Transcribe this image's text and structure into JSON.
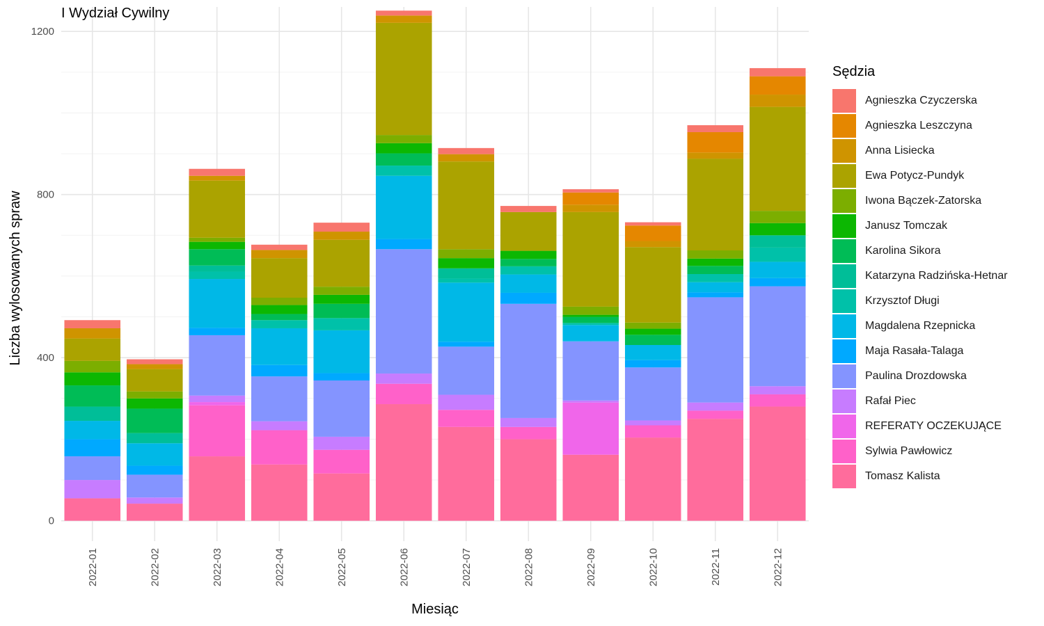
{
  "title": "I Wydział Cywilny",
  "chart_data": {
    "type": "bar",
    "stacked": true,
    "xlabel": "Miesiąc",
    "ylabel": "Liczba wylosowanych spraw",
    "ylim": [
      -50,
      1260
    ],
    "yticks": [
      0,
      400,
      800,
      1200
    ],
    "grid": true,
    "legend_title": "Sędzia",
    "legend_position": "right",
    "categories": [
      "2022-01",
      "2022-02",
      "2022-03",
      "2022-04",
      "2022-05",
      "2022-06",
      "2022-07",
      "2022-08",
      "2022-09",
      "2022-10",
      "2022-11",
      "2022-12"
    ],
    "series": [
      {
        "name": "Tomasz Kalista",
        "color": "#FF6C9C",
        "values": [
          55,
          42,
          158,
          138,
          116,
          286,
          230,
          200,
          162,
          204,
          250,
          280
        ]
      },
      {
        "name": "Sylwia Pawłowicz",
        "color": "#FF61C9",
        "values": [
          0,
          0,
          125,
          84,
          58,
          50,
          42,
          30,
          0,
          30,
          20,
          30
        ]
      },
      {
        "name": "REFERATY OCZEKUJĄCE",
        "color": "#F066EA",
        "values": [
          0,
          0,
          8,
          0,
          0,
          0,
          0,
          0,
          128,
          0,
          0,
          0
        ]
      },
      {
        "name": "Rafał Piec",
        "color": "#C77CFF",
        "values": [
          45,
          15,
          16,
          22,
          32,
          25,
          37,
          22,
          5,
          12,
          20,
          20
        ]
      },
      {
        "name": "Paulina Drozdowska",
        "color": "#8494FF",
        "values": [
          58,
          56,
          148,
          110,
          138,
          305,
          118,
          280,
          145,
          130,
          258,
          245
        ]
      },
      {
        "name": "Maja Rasała-Talaga",
        "color": "#00A9FF",
        "values": [
          42,
          22,
          18,
          28,
          18,
          25,
          12,
          27,
          0,
          18,
          12,
          20
        ]
      },
      {
        "name": "Magdalena Rzepnicka",
        "color": "#00B8E7",
        "values": [
          45,
          55,
          120,
          90,
          105,
          155,
          145,
          45,
          40,
          37,
          25,
          40
        ]
      },
      {
        "name": "Krzysztof Długi",
        "color": "#00C1A9",
        "values": [
          0,
          0,
          18,
          20,
          30,
          25,
          10,
          20,
          5,
          0,
          20,
          35
        ]
      },
      {
        "name": "Katarzyna Radzińska-Hetnar",
        "color": "#00BE98",
        "values": [
          35,
          25,
          15,
          0,
          0,
          0,
          25,
          0,
          0,
          0,
          0,
          30
        ]
      },
      {
        "name": "Karolina Sikora",
        "color": "#00BC56",
        "values": [
          52,
          60,
          40,
          15,
          35,
          30,
          0,
          18,
          15,
          25,
          20,
          0
        ]
      },
      {
        "name": "Janusz Tomczak",
        "color": "#0CB702",
        "values": [
          32,
          25,
          18,
          22,
          22,
          25,
          25,
          20,
          5,
          15,
          18,
          30
        ]
      },
      {
        "name": "Iwona Bączek-Zatorska",
        "color": "#7CAE00",
        "values": [
          28,
          17,
          10,
          18,
          20,
          20,
          22,
          0,
          20,
          15,
          20,
          30
        ]
      },
      {
        "name": "Ewa Potycz-Pundyk",
        "color": "#ABA300",
        "values": [
          55,
          55,
          140,
          97,
          115,
          275,
          215,
          95,
          232,
          185,
          225,
          255
        ]
      },
      {
        "name": "Anna Lisiecka",
        "color": "#CF9400",
        "values": [
          25,
          12,
          12,
          20,
          20,
          18,
          18,
          0,
          18,
          15,
          15,
          30
        ]
      },
      {
        "name": "Agnieszka Leszczyna",
        "color": "#E58700",
        "values": [
          0,
          0,
          0,
          0,
          0,
          0,
          0,
          0,
          30,
          38,
          50,
          45
        ]
      },
      {
        "name": "Agnieszka Czyczerska",
        "color": "#F8766D",
        "values": [
          20,
          12,
          17,
          13,
          22,
          12,
          15,
          15,
          8,
          8,
          17,
          20
        ]
      }
    ]
  }
}
